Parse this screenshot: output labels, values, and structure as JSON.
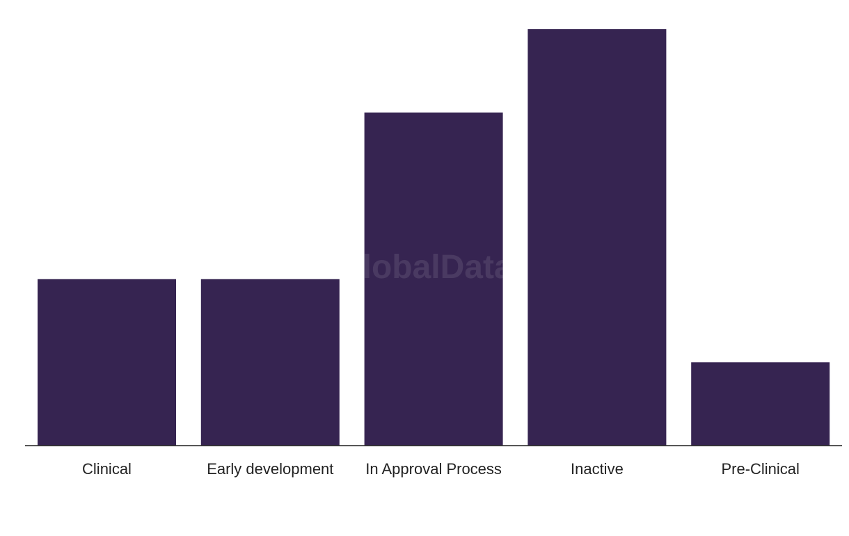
{
  "watermark": "GlobalData",
  "colors": {
    "bar": "#362451",
    "axis": "#1f1f1f",
    "text": "#222222",
    "watermark": "#ffffff"
  },
  "chart_data": {
    "type": "bar",
    "categories": [
      "Clinical",
      "Early development",
      "In Approval Process",
      "Inactive",
      "Pre-Clinical"
    ],
    "values": [
      2,
      2,
      4,
      5,
      1
    ],
    "title": "",
    "xlabel": "",
    "ylabel": "",
    "ylim": [
      0,
      5
    ],
    "grid": false,
    "legend": "none"
  }
}
